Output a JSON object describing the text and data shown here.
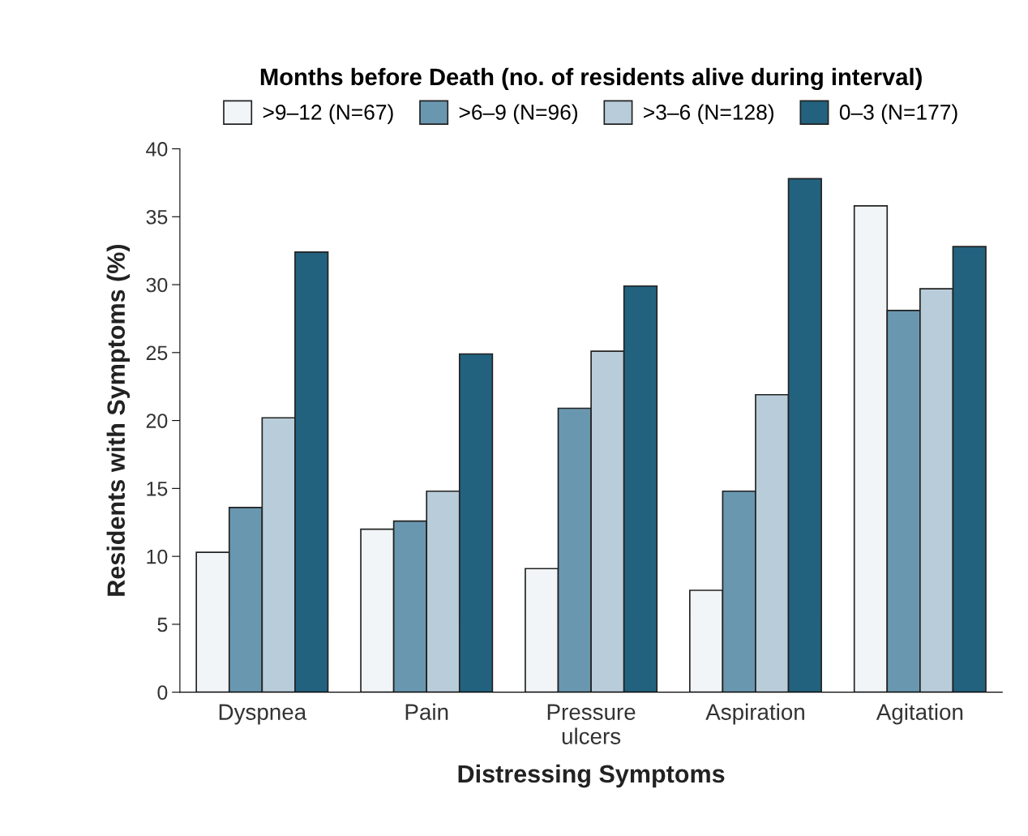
{
  "chart_data": {
    "type": "bar",
    "xlabel": "Distressing Symptoms",
    "ylabel": "Residents with Symptoms (%)",
    "legend_title": "Months before Death (no. of residents alive during interval)",
    "categories": [
      "Dyspnea",
      "Pain",
      "Pressure\nulcers",
      "Aspiration",
      "Agitation"
    ],
    "series": [
      {
        "name": ">9–12 (N=67)",
        "color": "#f2f5f7",
        "values": [
          10.3,
          12.0,
          9.1,
          7.5,
          35.8
        ]
      },
      {
        "name": ">6–9 (N=96)",
        "color": "#6a97b0",
        "values": [
          13.6,
          12.6,
          20.9,
          14.8,
          28.1
        ]
      },
      {
        "name": ">3–6 (N=128)",
        "color": "#b8cdd9",
        "values": [
          20.2,
          14.8,
          25.1,
          21.9,
          29.7
        ]
      },
      {
        "name": "0–3 (N=177)",
        "color": "#22627e",
        "values": [
          32.4,
          24.9,
          29.9,
          37.8,
          32.8
        ]
      }
    ],
    "ylim": [
      0,
      40
    ],
    "yticks": [
      0,
      5,
      10,
      15,
      20,
      25,
      30,
      35,
      40
    ],
    "grid": false,
    "legend": "top"
  }
}
